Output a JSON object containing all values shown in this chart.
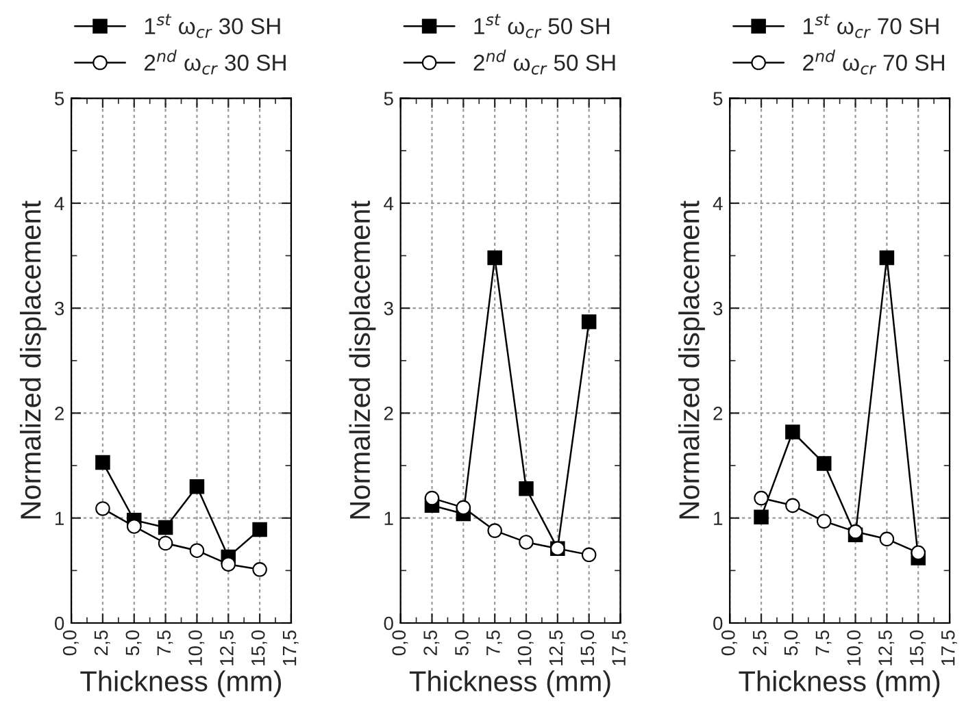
{
  "chart_data": [
    {
      "type": "line",
      "x": [
        2.5,
        5.0,
        7.5,
        10.0,
        12.5,
        15.0
      ],
      "xlabel": "Thickness (mm)",
      "ylabel": "Normalized displacement",
      "xlim": [
        0,
        17.5
      ],
      "ylim": [
        0,
        5
      ],
      "xticks": [
        {
          "value": 0,
          "label": "0,0"
        },
        {
          "value": 2.5,
          "label": "2,5"
        },
        {
          "value": 5,
          "label": "5,0"
        },
        {
          "value": 7.5,
          "label": "7,5"
        },
        {
          "value": 10,
          "label": "10,0"
        },
        {
          "value": 12.5,
          "label": "12,5"
        },
        {
          "value": 15,
          "label": "15,0"
        },
        {
          "value": 17.5,
          "label": "17,5"
        }
      ],
      "yticks": [
        0,
        1,
        2,
        3,
        4,
        5
      ],
      "grid": true,
      "legend": "top",
      "series": [
        {
          "name": "1$^{st}$ ω$_{cr}$ 30 SH",
          "color": "#000000",
          "marker": "square",
          "values": [
            1.53,
            0.98,
            0.91,
            1.3,
            0.63,
            0.89
          ]
        },
        {
          "name": "2$^{nd}$ ω$_{cr}$ 30 SH",
          "color": "#000000",
          "marker": "circle",
          "values": [
            1.09,
            0.92,
            0.76,
            0.69,
            0.56,
            0.51
          ]
        }
      ]
    },
    {
      "type": "line",
      "x": [
        2.5,
        5.0,
        7.5,
        10.0,
        12.5,
        15.0
      ],
      "xlabel": "Thickness (mm)",
      "ylabel": "Normalized displacement",
      "xlim": [
        0,
        17.5
      ],
      "ylim": [
        0,
        5
      ],
      "xticks": [
        {
          "value": 0,
          "label": "0,0"
        },
        {
          "value": 2.5,
          "label": "2,5"
        },
        {
          "value": 5,
          "label": "5,0"
        },
        {
          "value": 7.5,
          "label": "7,5"
        },
        {
          "value": 10,
          "label": "10,0"
        },
        {
          "value": 12.5,
          "label": "12,5"
        },
        {
          "value": 15,
          "label": "15,0"
        },
        {
          "value": 17.5,
          "label": "17,5"
        }
      ],
      "yticks": [
        0,
        1,
        2,
        3,
        4,
        5
      ],
      "grid": true,
      "legend": "top",
      "series": [
        {
          "name": "1$^{st}$ ω$_{cr}$ 50 SH",
          "color": "#000000",
          "marker": "square",
          "values": [
            1.12,
            1.04,
            3.48,
            1.28,
            0.71,
            2.87
          ]
        },
        {
          "name": "2$^{nd}$ ω$_{cr}$ 50 SH",
          "color": "#000000",
          "marker": "circle",
          "values": [
            1.19,
            1.1,
            0.88,
            0.77,
            0.71,
            0.65
          ]
        }
      ]
    },
    {
      "type": "line",
      "x": [
        2.5,
        5.0,
        7.5,
        10.0,
        12.5,
        15.0
      ],
      "xlabel": "Thickness (mm)",
      "ylabel": "Normalized displacement",
      "xlim": [
        0,
        17.5
      ],
      "ylim": [
        0,
        5
      ],
      "xticks": [
        {
          "value": 0,
          "label": "0,0"
        },
        {
          "value": 2.5,
          "label": "2,5"
        },
        {
          "value": 5,
          "label": "5,0"
        },
        {
          "value": 7.5,
          "label": "7,5"
        },
        {
          "value": 10,
          "label": "10,0"
        },
        {
          "value": 12.5,
          "label": "12,5"
        },
        {
          "value": 15,
          "label": "15,0"
        },
        {
          "value": 17.5,
          "label": "17,5"
        }
      ],
      "yticks": [
        0,
        1,
        2,
        3,
        4,
        5
      ],
      "grid": true,
      "legend": "top",
      "series": [
        {
          "name": "1$^{st}$ ω$_{cr}$ 70 SH",
          "color": "#000000",
          "marker": "square",
          "values": [
            1.01,
            1.82,
            1.52,
            0.84,
            3.48,
            0.62
          ]
        },
        {
          "name": "2$^{nd}$ ω$_{cr}$ 70 SH",
          "color": "#000000",
          "marker": "circle",
          "values": [
            1.19,
            1.12,
            0.97,
            0.87,
            0.8,
            0.67
          ]
        }
      ]
    }
  ]
}
